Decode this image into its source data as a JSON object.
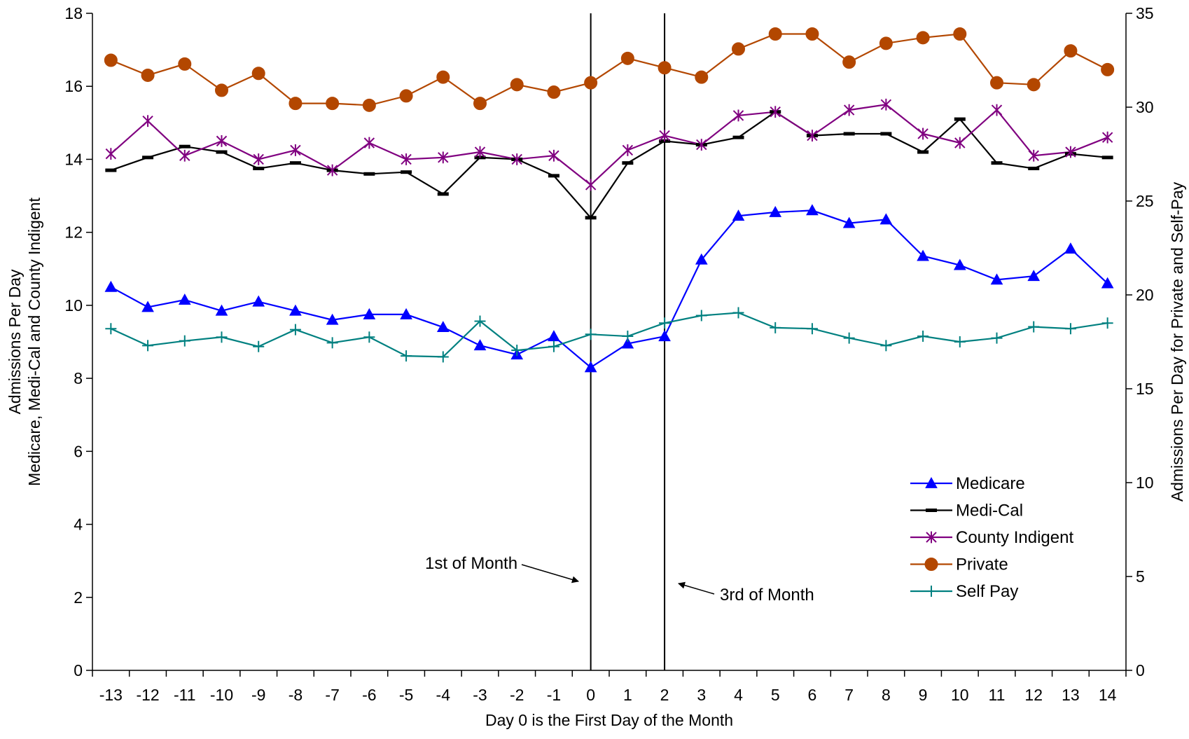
{
  "chart_data": {
    "type": "line",
    "title": "",
    "xlabel": "Day 0 is the First Day of the Month",
    "ylabel_left_line1": "Admissions Per Day",
    "ylabel_left_line2": "Medicare, Medi-Cal and County Indigent",
    "ylabel_right": "Admissions Per Day for Private and Self-Pay",
    "x": [
      -13,
      -12,
      -11,
      -10,
      -9,
      -8,
      -7,
      -6,
      -5,
      -4,
      -3,
      -2,
      -1,
      0,
      1,
      2,
      3,
      4,
      5,
      6,
      7,
      8,
      9,
      10,
      11,
      12,
      13,
      14
    ],
    "x_tick_labels": [
      "-13",
      "-12",
      "-11",
      "-10",
      "-9",
      "-8",
      "-7",
      "-6",
      "-5",
      "-4",
      "-3",
      "-2",
      "-1",
      "0",
      "1",
      "2",
      "3",
      "4",
      "5",
      "6",
      "7",
      "8",
      "9",
      "10",
      "11",
      "12",
      "13",
      "14"
    ],
    "ylim_left": [
      0,
      18
    ],
    "ylim_right": [
      0,
      35
    ],
    "left_ticks": [
      "0",
      "2",
      "4",
      "6",
      "8",
      "10",
      "12",
      "14",
      "16",
      "18"
    ],
    "right_ticks": [
      "0",
      "5",
      "10",
      "15",
      "20",
      "25",
      "30",
      "35"
    ],
    "grid": false,
    "legend_position": "lower-right",
    "series": [
      {
        "name": "Medicare",
        "axis": "left",
        "color": "#0000ff",
        "marker": "triangle",
        "values": [
          10.5,
          9.95,
          10.15,
          9.85,
          10.1,
          9.85,
          9.6,
          9.75,
          9.75,
          9.4,
          8.9,
          8.65,
          9.15,
          8.3,
          8.95,
          9.15,
          11.25,
          12.45,
          12.55,
          12.6,
          12.25,
          12.35,
          11.35,
          11.1,
          10.7,
          10.8,
          11.55,
          10.6
        ]
      },
      {
        "name": "Medi-Cal",
        "axis": "left",
        "color": "#000000",
        "marker": "dash",
        "values": [
          13.7,
          14.05,
          14.35,
          14.2,
          13.75,
          13.9,
          13.7,
          13.6,
          13.65,
          13.05,
          14.05,
          14.0,
          13.55,
          12.4,
          13.9,
          14.5,
          14.4,
          14.6,
          15.3,
          14.65,
          14.7,
          14.7,
          14.2,
          15.1,
          13.9,
          13.75,
          14.15,
          14.05
        ]
      },
      {
        "name": "County Indigent",
        "axis": "left",
        "color": "#800080",
        "marker": "asterisk",
        "values": [
          14.15,
          15.05,
          14.1,
          14.5,
          14.0,
          14.25,
          13.7,
          14.45,
          14.0,
          14.05,
          14.2,
          14.0,
          14.1,
          13.3,
          14.25,
          14.65,
          14.4,
          15.2,
          15.3,
          14.65,
          15.35,
          15.5,
          14.7,
          14.45,
          15.35,
          14.1,
          14.2,
          14.6
        ]
      },
      {
        "name": "Private",
        "axis": "right",
        "color": "#b34700",
        "marker": "circle",
        "values": [
          32.5,
          31.7,
          32.3,
          30.9,
          31.8,
          30.2,
          30.2,
          30.1,
          30.6,
          31.6,
          30.2,
          31.2,
          30.8,
          31.3,
          32.6,
          32.1,
          31.6,
          33.1,
          33.9,
          33.9,
          32.4,
          33.4,
          33.7,
          33.9,
          31.3,
          31.2,
          33.0,
          32.0
        ]
      },
      {
        "name": "Self Pay",
        "axis": "right",
        "color": "#008080",
        "marker": "plus",
        "values": [
          18.2,
          17.3,
          17.55,
          17.75,
          17.25,
          18.15,
          17.45,
          17.75,
          16.75,
          16.7,
          18.6,
          17.05,
          17.25,
          17.9,
          17.8,
          18.5,
          18.9,
          19.05,
          18.25,
          18.2,
          17.7,
          17.3,
          17.8,
          17.5,
          17.7,
          18.3,
          18.2,
          18.5
        ]
      }
    ],
    "vertical_lines": [
      0,
      2
    ],
    "annotations": [
      {
        "text": "1st of Month",
        "points_to_x": 0
      },
      {
        "text": "3rd of Month",
        "points_to_x": 2
      }
    ]
  }
}
